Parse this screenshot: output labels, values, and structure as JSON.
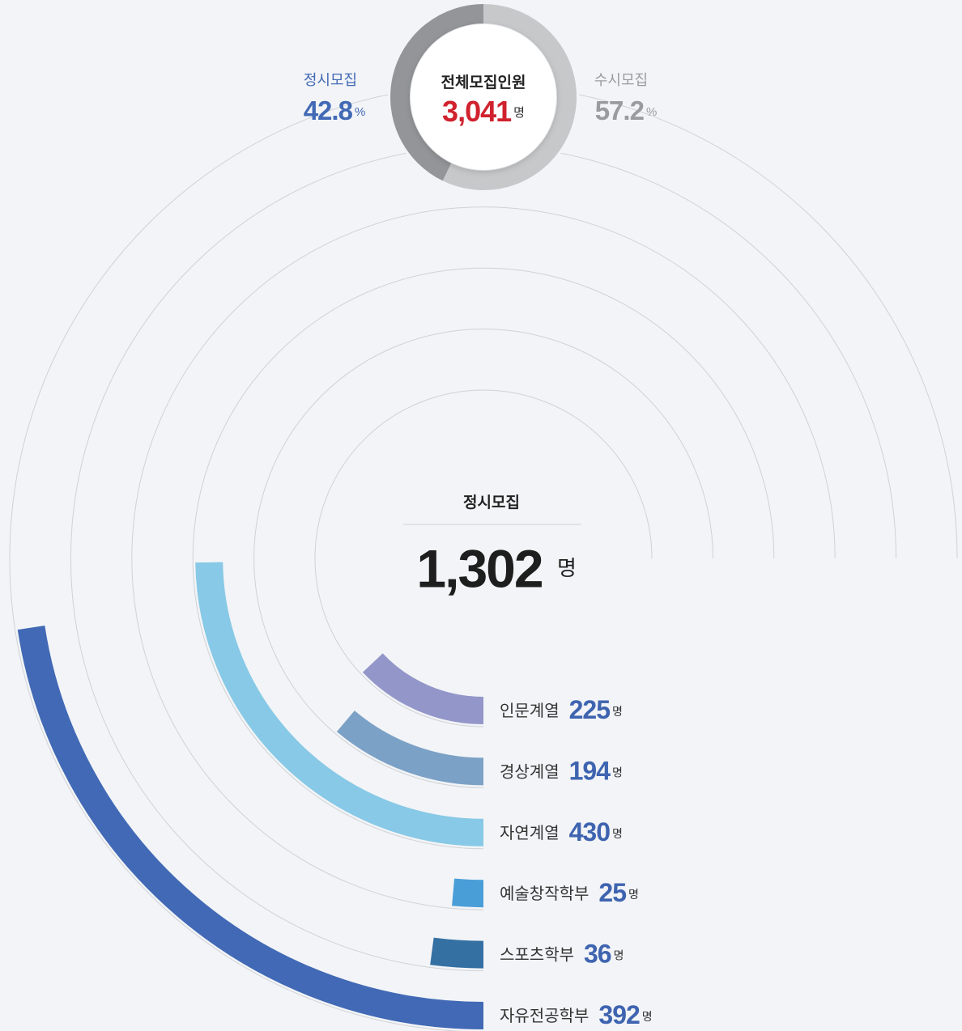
{
  "chart_data": {
    "type": "radial-bar",
    "summary": {
      "label": "전체모집인원",
      "total_label": "3,041",
      "unit": "명",
      "percent_unit": "%",
      "series": [
        {
          "name": "정시모집",
          "value": 42.8,
          "color": "#939598",
          "label_color": "#4169b5"
        },
        {
          "name": "수시모집",
          "value": 57.2,
          "color": "#c7c8ca",
          "label_color": "#9a9b9d"
        }
      ]
    },
    "title": "정시모집",
    "total_label": "1,302",
    "unit": "명",
    "categories": [
      "인문계열",
      "경상계열",
      "자연계열",
      "예술창작학부",
      "스포츠학부",
      "자유전공학부"
    ],
    "values": [
      225,
      194,
      430,
      25,
      36,
      392
    ],
    "colors": [
      "#9396c9",
      "#7ca1c6",
      "#87c9e6",
      "#4a9ed8",
      "#3570a3",
      "#4169b5"
    ],
    "max_angle": 270
  }
}
